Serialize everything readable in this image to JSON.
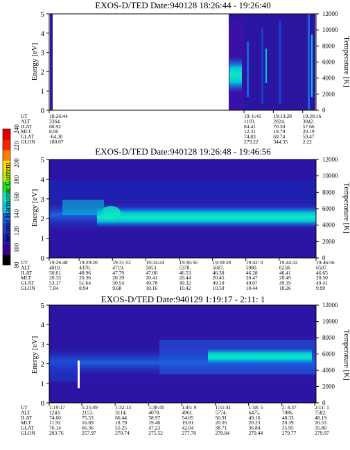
{
  "colorbar": {
    "label": "Second Harmonic Current",
    "ticks": [
      "80",
      "100",
      "120",
      "140",
      "160",
      "180",
      "200",
      "220",
      "240"
    ],
    "colors": [
      "#000000",
      "#3c0090",
      "#2020b0",
      "#1c3ccc",
      "#1e60e0",
      "#00c8d8",
      "#10e8c0",
      "#20e020",
      "#b0f000",
      "#ffe000",
      "#ff8000",
      "#ff2000",
      "#e00000"
    ]
  },
  "chart_data": [
    {
      "type": "heatmap",
      "title": "EXOS-D/TED   Date:940128   18:26:44 - 19:26:40",
      "ylabel": "Energy [eV]",
      "y2label": "Temperature [K]",
      "ylim": [
        0,
        5
      ],
      "y2lim": [
        0,
        12000
      ],
      "yticks": [
        "0",
        "1",
        "2",
        "3",
        "4",
        "5"
      ],
      "y2ticks": [
        "0",
        "2000",
        "4000",
        "6000",
        "8000",
        "10000",
        "12000"
      ],
      "row_labels": [
        "UT",
        "ALT",
        "ILAT",
        "MLT",
        "GLAT",
        "GLON"
      ],
      "columns": [
        {
          "pos": 0.0,
          "values": [
            "18:26:44",
            "3364.",
            "68.92",
            "8.00",
            "-64.30",
            "180.07"
          ]
        },
        {
          "pos": 0.73,
          "values": [
            "19: 6:41",
            "1103.",
            "84.41",
            "12.31",
            "74.83",
            "279.22"
          ]
        },
        {
          "pos": 0.84,
          "values": [
            "19:13:28",
            "2024.",
            "70.30",
            "19.79",
            "69.74",
            "344.35"
          ]
        },
        {
          "pos": 0.95,
          "values": [
            "19:20:16",
            "3042.",
            "57.66",
            "20.19",
            "59.47",
            "2.22"
          ]
        }
      ]
    },
    {
      "type": "heatmap",
      "title": "EXOS-D/TED   Date:940128   19:26:48 - 19:46:56",
      "ylabel": "Energy [eV]",
      "y2label": "Temperature [K]",
      "ylim": [
        0,
        5
      ],
      "y2lim": [
        0,
        12000
      ],
      "yticks": [
        "0",
        "1",
        "2",
        "3",
        "4",
        "5"
      ],
      "y2ticks": [
        "0",
        "2000",
        "4000",
        "6000",
        "8000",
        "10000",
        "12000"
      ],
      "row_labels": [
        "UT",
        "ALT",
        "ILAT",
        "MLT",
        "GLAT",
        "GLON"
      ],
      "columns": [
        {
          "pos": 0.0,
          "values": [
            "19:26:48",
            "4010.",
            "50.61",
            "20.33",
            "53.17",
            "7.84"
          ]
        },
        {
          "pos": 0.112,
          "values": [
            "19:29:20",
            "4370.",
            "48.96",
            "20.36",
            "51.64",
            "8.94"
          ]
        },
        {
          "pos": 0.237,
          "values": [
            "19:31:52",
            "4719.",
            "47.79",
            "20.39",
            "50.54",
            "9.68"
          ]
        },
        {
          "pos": 0.362,
          "values": [
            "19:34:24",
            "5053.",
            "47.00",
            "20.41",
            "49.78",
            "10.16"
          ]
        },
        {
          "pos": 0.487,
          "values": [
            "19:36:56",
            "5378.",
            "46.53",
            "20.44",
            "49.32",
            "10.42"
          ]
        },
        {
          "pos": 0.612,
          "values": [
            "19:39:28",
            "5687.",
            "46.30",
            "20.45",
            "49.10",
            "10.50"
          ]
        },
        {
          "pos": 0.737,
          "values": [
            "19:42: 0",
            "5980.",
            "46.28",
            "20.47",
            "49.07",
            "10.44"
          ]
        },
        {
          "pos": 0.862,
          "values": [
            "19:44:32",
            "6258.",
            "46.41",
            "20.49",
            "49.19",
            "10.26"
          ]
        },
        {
          "pos": 1.0,
          "values": [
            "19:46:56",
            "6507.",
            "46.65",
            "20.50",
            "49.41",
            "9.99"
          ]
        }
      ]
    },
    {
      "type": "heatmap",
      "title": "EXOS-D/TED   Date:940129   1:19:17 - 2:11: 1",
      "ylabel": "Energy [eV]",
      "y2label": "Temperature [K]",
      "ylim": [
        0,
        5
      ],
      "y2lim": [
        0,
        12000
      ],
      "yticks": [
        "0",
        "1",
        "2",
        "3",
        "4",
        "5"
      ],
      "y2ticks": [
        "0",
        "2000",
        "4000",
        "6000",
        "8000",
        "10000",
        "12000"
      ],
      "row_labels": [
        "UT",
        "ALT",
        "ILAT",
        "MLT",
        "GLAT",
        "GLON"
      ],
      "columns": [
        {
          "pos": 0.0,
          "values": [
            "1:19:17",
            "1243.",
            "74.60",
            "11.92",
            "76.14",
            "203.76"
          ]
        },
        {
          "pos": 0.122,
          "values": [
            "1:25:49",
            "2153.",
            "75.53",
            "16.89",
            "66.36",
            "257.97"
          ]
        },
        {
          "pos": 0.247,
          "values": [
            "1:32:13",
            "3114.",
            "66.44",
            "18.79",
            "55.25",
            "270.74"
          ]
        },
        {
          "pos": 0.372,
          "values": [
            "1:38:45",
            "4078.",
            "58.97",
            "19.46",
            "47.23",
            "275.52"
          ]
        },
        {
          "pos": 0.497,
          "values": [
            "1:45: 9",
            "4961.",
            "54.05",
            "19.81",
            "42.04",
            "277.70"
          ]
        },
        {
          "pos": 0.622,
          "values": [
            "1:51:41",
            "5774.",
            "50.91",
            "20.05",
            "38.71",
            "278.84"
          ]
        },
        {
          "pos": 0.747,
          "values": [
            "1:58: 5",
            "6475.",
            "49.16",
            "20.23",
            "36.84",
            "279.44"
          ]
        },
        {
          "pos": 0.872,
          "values": [
            "2: 4:37",
            "7086.",
            "48.33",
            "20.39",
            "35.95",
            "279.77"
          ]
        },
        {
          "pos": 0.995,
          "values": [
            "2:11: 1",
            "7582.",
            "48.19",
            "20.53",
            "35.80",
            "279.97"
          ]
        }
      ]
    }
  ]
}
